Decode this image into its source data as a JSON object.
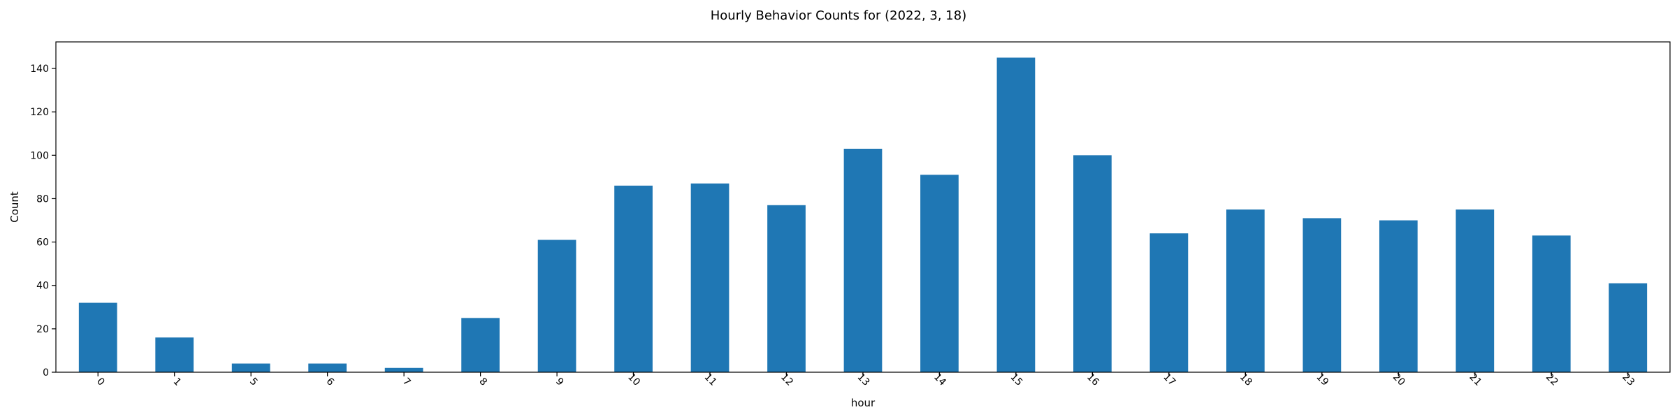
{
  "chart_data": {
    "type": "bar",
    "title": "Hourly Behavior Counts for (2022, 3, 18)",
    "xlabel": "hour",
    "ylabel": "Count",
    "categories": [
      "0",
      "1",
      "5",
      "6",
      "7",
      "8",
      "9",
      "10",
      "11",
      "12",
      "13",
      "14",
      "15",
      "16",
      "17",
      "18",
      "19",
      "20",
      "21",
      "22",
      "23"
    ],
    "values": [
      32,
      16,
      4,
      4,
      2,
      25,
      61,
      86,
      87,
      77,
      103,
      91,
      145,
      100,
      64,
      75,
      71,
      70,
      75,
      63,
      41
    ],
    "y_ticks": [
      0,
      20,
      40,
      60,
      80,
      100,
      120,
      140
    ],
    "ylim": [
      0,
      152.25
    ],
    "grid": false,
    "legend": "none",
    "bar_color": "#1f77b4",
    "x_tick_rotation": 45
  }
}
